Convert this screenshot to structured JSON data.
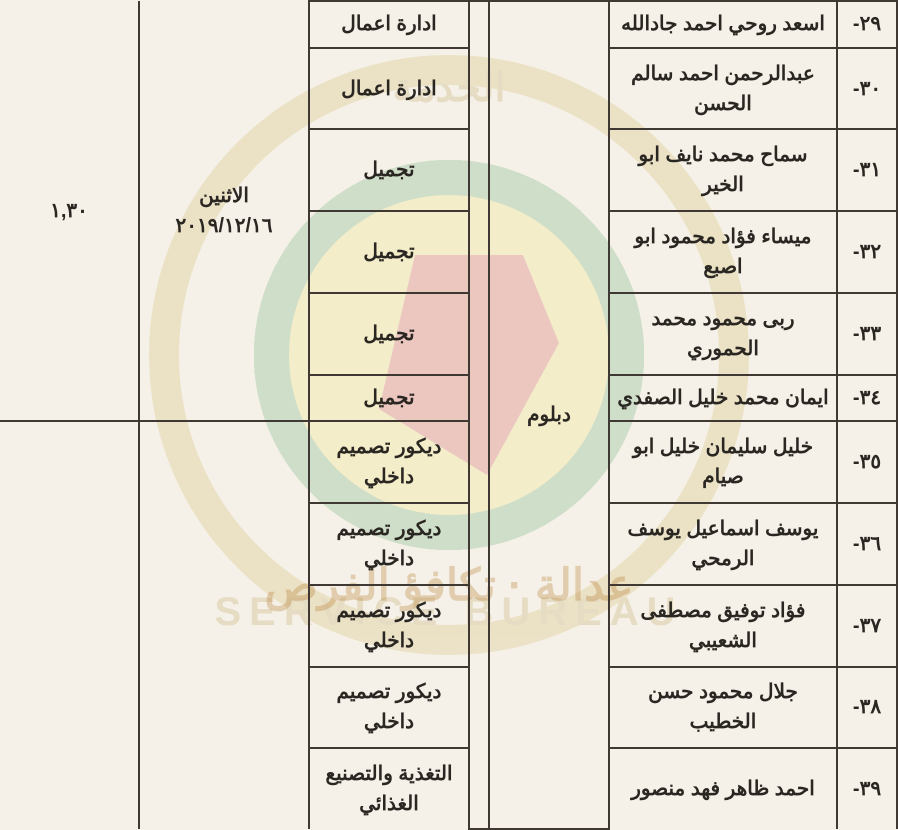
{
  "type": "table",
  "background_color": "#f5f1e8",
  "border_color": "#403832",
  "text_color": "#2a2622",
  "fontsize": 20,
  "watermark": {
    "ring_color": "#c0a030",
    "mid_color": "#2a8a3a",
    "inner_color": "#f0e040",
    "shape_color": "#c01010",
    "top_text": "الخدمة",
    "bottom_text": "SERVICE BUREAU",
    "slogan": "عدالة · تكافؤ الفرص"
  },
  "shared": {
    "degree": "دبلوم",
    "day": "الاثنين",
    "date": "٢٠١٩/١٢/١٦",
    "time": "١,٣٠"
  },
  "rows": [
    {
      "num": "-٢٩",
      "name": "اسعد روحي احمد جادالله",
      "spec": "ادارة اعمال"
    },
    {
      "num": "-٣٠",
      "name": "عبدالرحمن احمد سالم الحسن",
      "spec": "ادارة اعمال"
    },
    {
      "num": "-٣١",
      "name": "سماح محمد نايف ابو الخير",
      "spec": "تجميل"
    },
    {
      "num": "-٣٢",
      "name": "ميساء فؤاد محمود ابو اصبع",
      "spec": "تجميل"
    },
    {
      "num": "-٣٣",
      "name": "ربى محمود محمد الحموري",
      "spec": "تجميل"
    },
    {
      "num": "-٣٤",
      "name": "ايمان محمد خليل الصفدي",
      "spec": "تجميل"
    },
    {
      "num": "-٣٥",
      "name": "خليل سليمان خليل ابو صيام",
      "spec": "ديكور تصميم داخلي"
    },
    {
      "num": "-٣٦",
      "name": "يوسف اسماعيل يوسف الرمحي",
      "spec": "ديكور تصميم داخلي"
    },
    {
      "num": "-٣٧",
      "name": "فؤاد توفيق مصطفى الشعيبي",
      "spec": "ديكور تصميم داخلي"
    },
    {
      "num": "-٣٨",
      "name": "جلال محمود حسن الخطيب",
      "spec": "ديكور تصميم داخلي"
    },
    {
      "num": "-٣٩",
      "name": "احمد ظاهر فهد منصور",
      "spec": "التغذية والتصنيع الغذائي"
    }
  ],
  "columns": [
    "num",
    "name",
    "degree",
    "spec",
    "day",
    "time"
  ]
}
